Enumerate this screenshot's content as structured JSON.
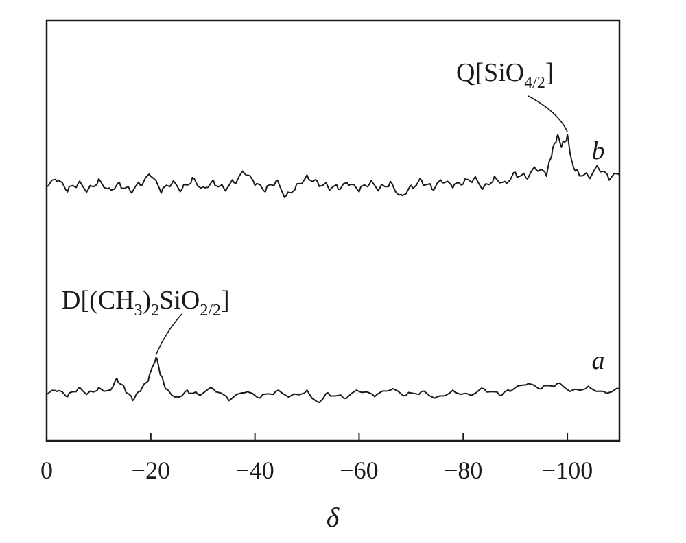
{
  "chart_data": {
    "type": "line",
    "xlabel": "δ",
    "ylabel": "",
    "xlim": [
      0,
      -110
    ],
    "x_direction": "decreasing to the right",
    "x_ticks": [
      0,
      -20,
      -40,
      -60,
      -80,
      -100
    ],
    "x_tick_labels": [
      "0",
      "−20",
      "−40",
      "−60",
      "−80",
      "−100"
    ],
    "y_ticks": [],
    "series": [
      {
        "name": "b",
        "x": [
          0,
          -2,
          -4,
          -6,
          -8,
          -10,
          -12,
          -14,
          -16,
          -18,
          -20,
          -22,
          -24,
          -26,
          -28,
          -30,
          -32,
          -34,
          -36,
          -38,
          -40,
          -42,
          -44,
          -46,
          -48,
          -50,
          -52,
          -54,
          -56,
          -58,
          -60,
          -62,
          -64,
          -66,
          -68,
          -70,
          -72,
          -74,
          -76,
          -78,
          -80,
          -82,
          -84,
          -86,
          -88,
          -90,
          -92,
          -94,
          -96,
          -97,
          -98,
          -99,
          -100,
          -101,
          -102,
          -104,
          -106,
          -108,
          -110
        ],
        "y": [
          0.62,
          0.66,
          0.58,
          0.64,
          0.6,
          0.68,
          0.61,
          0.65,
          0.59,
          0.63,
          0.7,
          0.57,
          0.64,
          0.6,
          0.69,
          0.62,
          0.67,
          0.61,
          0.65,
          0.72,
          0.63,
          0.58,
          0.66,
          0.55,
          0.64,
          0.71,
          0.66,
          0.62,
          0.6,
          0.63,
          0.58,
          0.64,
          0.61,
          0.66,
          0.56,
          0.63,
          0.67,
          0.6,
          0.65,
          0.61,
          0.64,
          0.68,
          0.62,
          0.7,
          0.66,
          0.73,
          0.69,
          0.75,
          0.7,
          0.86,
          1.0,
          0.94,
          1.02,
          0.8,
          0.74,
          0.7,
          0.76,
          0.67,
          0.71
        ]
      },
      {
        "name": "a",
        "x": [
          0,
          -2,
          -4,
          -6,
          -8,
          -10,
          -12,
          -13.5,
          -15,
          -16.5,
          -18,
          -19.5,
          -21,
          -22,
          -23,
          -25,
          -27,
          -29,
          -32,
          -35,
          -38,
          -41,
          -44,
          -47,
          -50,
          -52,
          -54,
          -57,
          -60,
          -63,
          -66,
          -69,
          -72,
          -75,
          -78,
          -81,
          -84,
          -87,
          -89,
          -92,
          -95,
          -98,
          -101,
          -104,
          -107,
          -110
        ],
        "y": [
          0.08,
          0.1,
          0.06,
          0.12,
          0.09,
          0.13,
          0.11,
          0.2,
          0.12,
          0.03,
          0.1,
          0.18,
          0.36,
          0.22,
          0.12,
          0.06,
          0.11,
          0.08,
          0.12,
          0.03,
          0.09,
          0.05,
          0.1,
          0.07,
          0.11,
          0.02,
          0.09,
          0.05,
          0.1,
          0.06,
          0.11,
          0.07,
          0.1,
          0.06,
          0.11,
          0.08,
          0.12,
          0.07,
          0.1,
          0.15,
          0.12,
          0.16,
          0.11,
          0.14,
          0.1,
          0.12
        ]
      }
    ],
    "annotations": [
      {
        "id": "q",
        "text": "Q[SiO",
        "sub": "4/2",
        "tail": "]",
        "target_series": "b",
        "target_x": -100
      },
      {
        "id": "d",
        "text": "D[(CH",
        "sub1": "3",
        "mid": ")",
        "sub2": "2",
        "text2": "SiO",
        "sub3": "2/2",
        "tail": "]",
        "target_series": "a",
        "target_x": -21
      }
    ],
    "grid": false,
    "legend": "none"
  }
}
